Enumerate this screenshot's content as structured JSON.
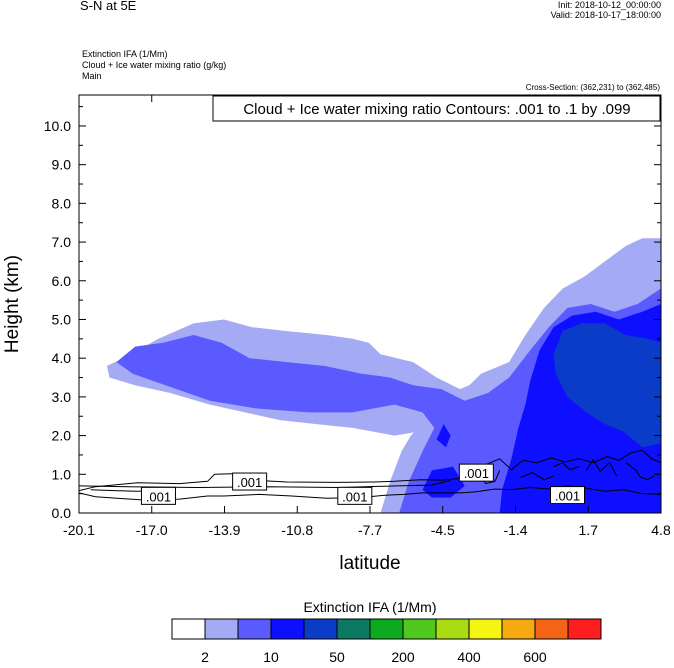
{
  "header": {
    "title": "S-N at 5E",
    "init": "Init: 2018-10-12_00:00:00",
    "valid": "Valid: 2018-10-17_18:00:00",
    "fields": [
      "Extinction IFA   (1/Mm)",
      "Cloud + Ice water mixing ratio   (g/kg)",
      "Main"
    ],
    "cross_section": "Cross-Section: (362,231) to (362,485)"
  },
  "colors": {
    "fill_levels": [
      "#ffffff",
      "#a5aaf5",
      "#5a5aff",
      "#0f0fff",
      "#0a3cc8",
      "#0b7864",
      "#0caa1e",
      "#50c81e",
      "#aadc14",
      "#f5f514",
      "#f5aa0f",
      "#f56414",
      "#ff1e1e"
    ]
  },
  "chart_data": {
    "type": "contour",
    "title": "Cloud + Ice water mixing ratio Contours: .001 to .1 by .099",
    "xlabel": "latitude",
    "ylabel": "Height (km)",
    "xlim": [
      -20.1,
      4.8
    ],
    "ylim": [
      0.0,
      10.8
    ],
    "x_ticks": [
      "-20.1",
      "-17.0",
      "-13.9",
      "-10.8",
      "-7.7",
      "-4.5",
      "-1.4",
      "1.7",
      "4.8"
    ],
    "y_ticks": [
      "0.0",
      "1.0",
      "2.0",
      "3.0",
      "4.0",
      "5.0",
      "6.0",
      "7.0",
      "8.0",
      "9.0",
      "10.0"
    ],
    "contour_labels": [
      {
        "text": ".001",
        "x": -16.7,
        "y": 0.43
      },
      {
        "text": ".001",
        "x": -12.8,
        "y": 0.8
      },
      {
        "text": ".001",
        "x": -8.3,
        "y": 0.43
      },
      {
        "text": ".001",
        "x": -3.1,
        "y": 1.03
      },
      {
        "text": ".001",
        "x": 0.8,
        "y": 0.45
      }
    ],
    "colorbar": {
      "title": "Extinction IFA  (1/Mm)",
      "tick_labels": [
        "2",
        "10",
        "50",
        "200",
        "400",
        "600"
      ],
      "levels": [
        1,
        2,
        5,
        10,
        20,
        50,
        100,
        200,
        300,
        400,
        500,
        600,
        700
      ]
    },
    "regions": [
      {
        "level": 1,
        "points": [
          [
            -18.9,
            3.8
          ],
          [
            -18.2,
            4.0
          ],
          [
            -16.7,
            4.5
          ],
          [
            -15.2,
            4.9
          ],
          [
            -13.9,
            5.0
          ],
          [
            -12.7,
            4.8
          ],
          [
            -11.2,
            4.7
          ],
          [
            -9.5,
            4.6
          ],
          [
            -8.4,
            4.5
          ],
          [
            -7.7,
            4.4
          ],
          [
            -7.2,
            4.1
          ],
          [
            -5.8,
            3.9
          ],
          [
            -4.8,
            3.5
          ],
          [
            -3.8,
            3.2
          ],
          [
            -3.4,
            3.3
          ],
          [
            -2.9,
            3.6
          ],
          [
            -1.7,
            3.9
          ],
          [
            -1.0,
            4.6
          ],
          [
            -0.2,
            5.3
          ],
          [
            0.6,
            5.8
          ],
          [
            1.5,
            6.1
          ],
          [
            2.4,
            6.5
          ],
          [
            3.3,
            6.9
          ],
          [
            4.0,
            7.1
          ],
          [
            4.8,
            7.1
          ],
          [
            4.8,
            0.0
          ],
          [
            -7.2,
            0.0
          ],
          [
            -6.8,
            0.8
          ],
          [
            -6.3,
            1.6
          ],
          [
            -5.9,
            2.0
          ],
          [
            -5.3,
            2.4
          ],
          [
            -4.7,
            2.6
          ],
          [
            -5.0,
            2.2
          ],
          [
            -5.6,
            2.1
          ],
          [
            -6.6,
            2.0
          ],
          [
            -8.4,
            2.2
          ],
          [
            -10.0,
            2.3
          ],
          [
            -11.5,
            2.4
          ],
          [
            -13.0,
            2.6
          ],
          [
            -14.5,
            2.8
          ],
          [
            -16.2,
            3.1
          ],
          [
            -17.7,
            3.3
          ],
          [
            -18.8,
            3.5
          ]
        ]
      },
      {
        "level": 2,
        "points": [
          [
            -18.5,
            3.9
          ],
          [
            -17.7,
            4.3
          ],
          [
            -16.5,
            4.4
          ],
          [
            -15.2,
            4.6
          ],
          [
            -14.0,
            4.4
          ],
          [
            -12.8,
            4.0
          ],
          [
            -11.2,
            3.9
          ],
          [
            -9.6,
            3.8
          ],
          [
            -8.0,
            3.6
          ],
          [
            -6.8,
            3.5
          ],
          [
            -5.8,
            3.3
          ],
          [
            -4.6,
            3.2
          ],
          [
            -3.6,
            2.9
          ],
          [
            -2.6,
            3.1
          ],
          [
            -1.7,
            3.5
          ],
          [
            -0.8,
            4.2
          ],
          [
            0.0,
            4.8
          ],
          [
            0.8,
            5.3
          ],
          [
            1.8,
            5.4
          ],
          [
            2.8,
            5.2
          ],
          [
            3.8,
            5.4
          ],
          [
            4.8,
            5.8
          ],
          [
            4.8,
            0.0
          ],
          [
            -6.4,
            0.0
          ],
          [
            -6.0,
            0.8
          ],
          [
            -5.4,
            1.6
          ],
          [
            -4.9,
            2.2
          ],
          [
            -5.4,
            2.6
          ],
          [
            -6.6,
            2.8
          ],
          [
            -8.4,
            2.6
          ],
          [
            -10.3,
            2.6
          ],
          [
            -12.5,
            2.7
          ],
          [
            -14.5,
            2.9
          ],
          [
            -16.4,
            3.3
          ],
          [
            -17.8,
            3.6
          ]
        ]
      },
      {
        "level": 3,
        "points": [
          [
            -0.8,
            3.4
          ],
          [
            -0.4,
            4.2
          ],
          [
            0.2,
            4.8
          ],
          [
            1.0,
            5.1
          ],
          [
            2.0,
            5.2
          ],
          [
            3.0,
            5.0
          ],
          [
            4.0,
            5.2
          ],
          [
            4.8,
            5.4
          ],
          [
            4.8,
            0.0
          ],
          [
            -2.1,
            0.0
          ],
          [
            -2.0,
            0.6
          ],
          [
            -1.6,
            1.4
          ],
          [
            -1.3,
            2.2
          ],
          [
            -1.0,
            2.8
          ]
        ]
      },
      {
        "level": 3,
        "points": [
          [
            -4.8,
            1.9
          ],
          [
            -4.5,
            2.3
          ],
          [
            -4.2,
            2.0
          ],
          [
            -4.4,
            1.7
          ]
        ]
      },
      {
        "level": 3,
        "points": [
          [
            -5.4,
            0.6
          ],
          [
            -5.0,
            1.1
          ],
          [
            -4.1,
            1.2
          ],
          [
            -3.6,
            0.7
          ],
          [
            -4.2,
            0.4
          ],
          [
            -5.0,
            0.4
          ]
        ]
      },
      {
        "level": 4,
        "points": [
          [
            0.2,
            4.1
          ],
          [
            0.6,
            4.7
          ],
          [
            1.4,
            4.9
          ],
          [
            2.4,
            4.9
          ],
          [
            3.3,
            4.6
          ],
          [
            4.2,
            4.5
          ],
          [
            4.8,
            4.4
          ],
          [
            4.8,
            1.8
          ],
          [
            4.0,
            1.7
          ],
          [
            3.2,
            2.1
          ],
          [
            2.4,
            2.3
          ],
          [
            1.6,
            2.6
          ],
          [
            0.8,
            3.0
          ],
          [
            0.3,
            3.6
          ]
        ]
      },
      {
        "level": 3,
        "points": [
          [
            -1.9,
            0.7
          ],
          [
            -1.5,
            1.2
          ],
          [
            -0.9,
            1.1
          ],
          [
            -0.6,
            0.6
          ],
          [
            -1.2,
            0.2
          ],
          [
            -1.8,
            0.3
          ]
        ]
      }
    ],
    "contour_lines": [
      [
        [
          -20.1,
          0.58
        ],
        [
          -19.4,
          0.68
        ],
        [
          -17.6,
          0.78
        ],
        [
          -15.8,
          0.76
        ],
        [
          -14.6,
          0.82
        ],
        [
          -14.3,
          1.0
        ],
        [
          -13.2,
          1.02
        ],
        [
          -12.4,
          0.84
        ],
        [
          -11.2,
          0.8
        ],
        [
          -9.0,
          0.79
        ],
        [
          -7.5,
          0.8
        ],
        [
          -6.6,
          0.82
        ],
        [
          -5.5,
          0.86
        ],
        [
          -4.5,
          0.85
        ],
        [
          -3.7,
          0.9
        ],
        [
          -3.4,
          1.16
        ],
        [
          -2.7,
          1.25
        ],
        [
          -2.1,
          1.4
        ],
        [
          -1.6,
          1.12
        ],
        [
          -1.1,
          1.36
        ],
        [
          -0.5,
          1.3
        ],
        [
          0.1,
          1.42
        ],
        [
          0.7,
          1.32
        ],
        [
          1.3,
          1.4
        ],
        [
          1.9,
          1.3
        ],
        [
          2.5,
          1.46
        ],
        [
          3.0,
          1.36
        ],
        [
          3.5,
          1.55
        ],
        [
          4.0,
          1.62
        ],
        [
          4.4,
          1.4
        ],
        [
          4.8,
          1.3
        ]
      ],
      [
        [
          -20.1,
          0.52
        ],
        [
          -19.4,
          0.42
        ],
        [
          -17.5,
          0.34
        ],
        [
          -15.8,
          0.36
        ],
        [
          -14.6,
          0.44
        ],
        [
          -13.9,
          0.44
        ],
        [
          -12.4,
          0.48
        ],
        [
          -11.0,
          0.44
        ],
        [
          -9.5,
          0.38
        ],
        [
          -8.0,
          0.4
        ],
        [
          -7.0,
          0.46
        ],
        [
          -6.2,
          0.48
        ],
        [
          -5.4,
          0.52
        ],
        [
          -4.6,
          0.52
        ],
        [
          -3.8,
          0.52
        ],
        [
          -3.1,
          0.55
        ],
        [
          -2.3,
          0.62
        ],
        [
          -1.6,
          0.6
        ],
        [
          -0.8,
          0.66
        ],
        [
          0.0,
          0.62
        ],
        [
          0.8,
          0.7
        ],
        [
          1.6,
          0.64
        ],
        [
          2.4,
          0.56
        ],
        [
          3.2,
          0.6
        ],
        [
          4.0,
          0.5
        ],
        [
          4.8,
          0.48
        ]
      ],
      [
        [
          -20.1,
          0.7
        ],
        [
          -18.0,
          0.68
        ],
        [
          -15.0,
          0.66
        ],
        [
          -12.0,
          0.68
        ],
        [
          -9.0,
          0.66
        ],
        [
          -6.5,
          0.7
        ],
        [
          -5.0,
          0.72
        ],
        [
          -4.2,
          0.84
        ]
      ],
      [
        [
          -19.6,
          0.6
        ],
        [
          -18.6,
          0.58
        ],
        [
          -17.6,
          0.56
        ],
        [
          -16.5,
          0.58
        ]
      ],
      [
        [
          -3.6,
          0.9
        ],
        [
          -3.0,
          1.0
        ],
        [
          -2.7,
          0.76
        ],
        [
          -2.3,
          0.82
        ],
        [
          -2.1,
          1.1
        ]
      ],
      [
        [
          0.2,
          1.2
        ],
        [
          0.6,
          1.3
        ],
        [
          0.9,
          1.12
        ],
        [
          1.3,
          1.2
        ]
      ],
      [
        [
          1.6,
          1.1
        ],
        [
          1.9,
          1.38
        ],
        [
          2.2,
          1.08
        ],
        [
          2.6,
          1.3
        ],
        [
          2.9,
          0.96
        ]
      ],
      [
        [
          3.3,
          1.3
        ],
        [
          3.7,
          1.12
        ],
        [
          3.9,
          0.94
        ],
        [
          4.2,
          0.86
        ],
        [
          4.5,
          0.95
        ]
      ],
      [
        [
          -1.2,
          0.92
        ],
        [
          -0.7,
          1.04
        ],
        [
          -0.2,
          0.86
        ],
        [
          0.2,
          0.95
        ]
      ]
    ]
  }
}
